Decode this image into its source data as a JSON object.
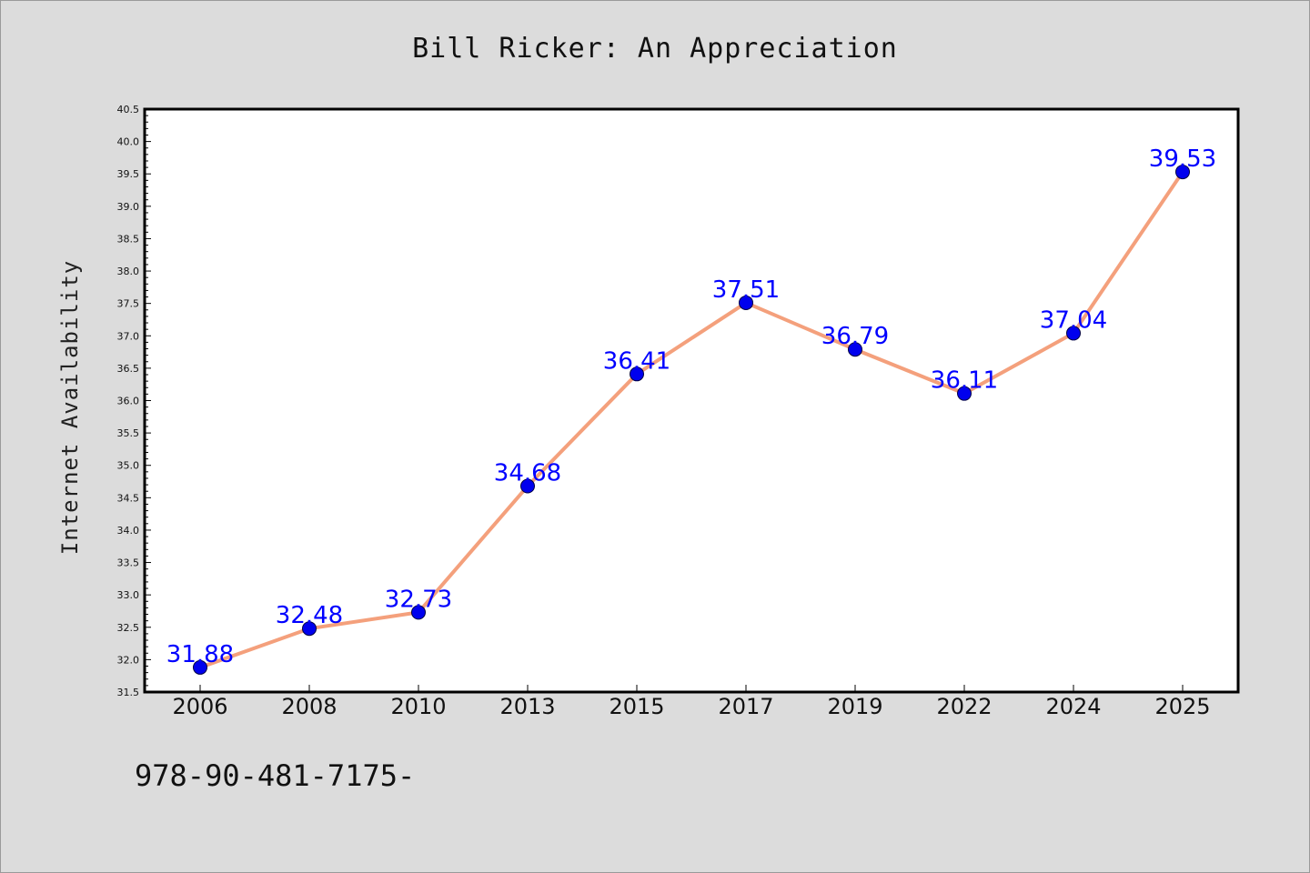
{
  "chart_data": {
    "type": "line",
    "title": "Bill Ricker: An Appreciation",
    "ylabel": "Internet Availability",
    "xlabel": "",
    "categories": [
      "2006",
      "2008",
      "2010",
      "2013",
      "2015",
      "2017",
      "2019",
      "2022",
      "2024",
      "2025"
    ],
    "series": [
      {
        "values": [
          31.88,
          32.48,
          32.73,
          34.68,
          36.41,
          37.51,
          36.79,
          36.11,
          37.04,
          39.53
        ],
        "line_color": "#f4a07c",
        "marker_color": "#0000ee"
      }
    ],
    "data_labels": [
      "31.88",
      "32.48",
      "32.73",
      "34.68",
      "36.41",
      "37.51",
      "36.79",
      "36.11",
      "37.04",
      "39.53"
    ],
    "ylim": [
      31.5,
      40.5
    ],
    "yticks": [
      "31.5",
      "32.0",
      "32.5",
      "33.0",
      "33.5",
      "34.0",
      "34.5",
      "35.0",
      "35.5",
      "36.0",
      "36.5",
      "37.0",
      "37.5",
      "38.0",
      "38.5",
      "39.0",
      "39.5",
      "40.0",
      "40.5"
    ],
    "grid": false,
    "legend": "none",
    "label_color": "#0000ff",
    "background": "#dcdcdc",
    "plot_background": "#ffffff"
  },
  "footnote": "978-90-481-7175-"
}
